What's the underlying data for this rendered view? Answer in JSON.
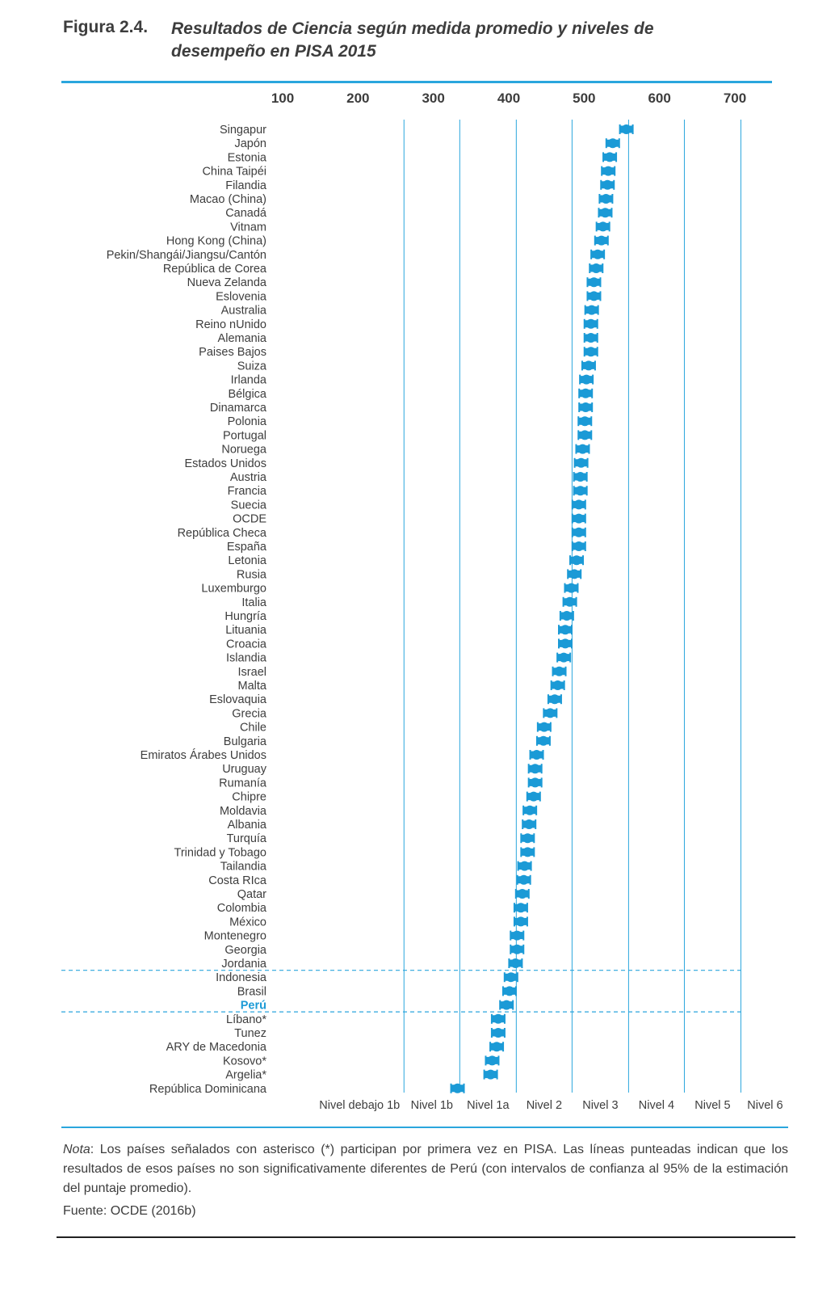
{
  "figure": {
    "label": "Figura 2.4.",
    "title": "Resultados de Ciencia según medida promedio y niveles de desempeño en PISA 2015"
  },
  "note": {
    "prefix": "Nota",
    "text": ": Los países señalados con asterisco (*) participan por primera vez en PISA. Las líneas punteadas indican que los resultados de esos países no son significativamente diferentes de Perú (con intervalos de confianza al 95% de la estimación del puntaje promedio)."
  },
  "source": "Fuente: OCDE (2016b)",
  "colors": {
    "accent": "#2aa6dd",
    "marker": "#1b9ad6",
    "text": "#3d3d3d",
    "highlight": "#1b9ad6"
  },
  "chart_data": {
    "type": "scatter",
    "title": "Resultados de Ciencia según medida promedio y niveles de desempeño en PISA 2015",
    "axis_ticks": [
      100,
      200,
      300,
      400,
      500,
      600,
      700
    ],
    "xlim": [
      90,
      710
    ],
    "level_boundaries": [
      261,
      335,
      410,
      484,
      559,
      633,
      708
    ],
    "levels": [
      "Nivel debajo 1b",
      "Nivel 1b",
      "Nivel 1a",
      "Nivel 2",
      "Nivel 3",
      "Nivel 4",
      "Nivel 5",
      "Nivel 6"
    ],
    "highlight_country": "Perú",
    "dashed_group": [
      "Indonesia",
      "Brasil",
      "Perú"
    ],
    "marker_style": "mean with 95% confidence interval",
    "countries": [
      {
        "name": "Singapur",
        "value": 556
      },
      {
        "name": "Japón",
        "value": 538
      },
      {
        "name": "Estonia",
        "value": 534
      },
      {
        "name": "China Taipéi",
        "value": 532
      },
      {
        "name": "Filandia",
        "value": 531
      },
      {
        "name": "Macao (China)",
        "value": 529
      },
      {
        "name": "Canadá",
        "value": 528
      },
      {
        "name": "Vitnam",
        "value": 525
      },
      {
        "name": "Hong Kong (China)",
        "value": 523
      },
      {
        "name": "Pekin/Shangái/Jiangsu/Cantón",
        "value": 518
      },
      {
        "name": "República de Corea",
        "value": 516
      },
      {
        "name": "Nueva Zelanda",
        "value": 513
      },
      {
        "name": "Eslovenia",
        "value": 513
      },
      {
        "name": "Australia",
        "value": 510
      },
      {
        "name": "Reino nUnido",
        "value": 509
      },
      {
        "name": "Alemania",
        "value": 509
      },
      {
        "name": "Paises Bajos",
        "value": 509
      },
      {
        "name": "Suiza",
        "value": 506
      },
      {
        "name": "Irlanda",
        "value": 503
      },
      {
        "name": "Bélgica",
        "value": 502
      },
      {
        "name": "Dinamarca",
        "value": 502
      },
      {
        "name": "Polonia",
        "value": 501
      },
      {
        "name": "Portugal",
        "value": 501
      },
      {
        "name": "Noruega",
        "value": 498
      },
      {
        "name": "Estados Unidos",
        "value": 496
      },
      {
        "name": "Austria",
        "value": 495
      },
      {
        "name": "Francia",
        "value": 495
      },
      {
        "name": "Suecia",
        "value": 493
      },
      {
        "name": "OCDE",
        "value": 493
      },
      {
        "name": "República Checa",
        "value": 493
      },
      {
        "name": "España",
        "value": 493
      },
      {
        "name": "Letonia",
        "value": 490
      },
      {
        "name": "Rusia",
        "value": 487
      },
      {
        "name": "Luxemburgo",
        "value": 483
      },
      {
        "name": "Italia",
        "value": 481
      },
      {
        "name": "Hungría",
        "value": 477
      },
      {
        "name": "Lituania",
        "value": 475
      },
      {
        "name": "Croacia",
        "value": 475
      },
      {
        "name": "Islandia",
        "value": 473
      },
      {
        "name": "Israel",
        "value": 467
      },
      {
        "name": "Malta",
        "value": 465
      },
      {
        "name": "Eslovaquia",
        "value": 461
      },
      {
        "name": "Grecia",
        "value": 455
      },
      {
        "name": "Chile",
        "value": 447
      },
      {
        "name": "Bulgaria",
        "value": 446
      },
      {
        "name": "Emiratos Árabes Unidos",
        "value": 437
      },
      {
        "name": "Uruguay",
        "value": 435
      },
      {
        "name": "Rumanía",
        "value": 435
      },
      {
        "name": "Chipre",
        "value": 433
      },
      {
        "name": "Moldavia",
        "value": 428
      },
      {
        "name": "Albania",
        "value": 427
      },
      {
        "name": "Turquía",
        "value": 425
      },
      {
        "name": "Trinidad y Tobago",
        "value": 425
      },
      {
        "name": "Tailandia",
        "value": 421
      },
      {
        "name": "Costa RIca",
        "value": 420
      },
      {
        "name": "Qatar",
        "value": 418
      },
      {
        "name": "Colombia",
        "value": 416
      },
      {
        "name": "México",
        "value": 416
      },
      {
        "name": "Montenegro",
        "value": 411
      },
      {
        "name": "Georgia",
        "value": 411
      },
      {
        "name": "Jordania",
        "value": 409
      },
      {
        "name": "Indonesia",
        "value": 403
      },
      {
        "name": "Brasil",
        "value": 401
      },
      {
        "name": "Perú",
        "value": 397
      },
      {
        "name": "Líbano*",
        "value": 386
      },
      {
        "name": "Tunez",
        "value": 386
      },
      {
        "name": "ARY de Macedonia",
        "value": 384
      },
      {
        "name": "Kosovo*",
        "value": 378
      },
      {
        "name": "Argelia*",
        "value": 376
      },
      {
        "name": "República Dominicana",
        "value": 332
      }
    ]
  }
}
